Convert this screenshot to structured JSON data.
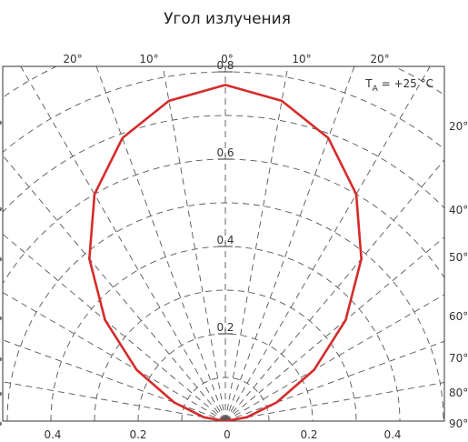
{
  "chart_data": {
    "type": "polar",
    "title": "Угол излучения",
    "annotation": {
      "prefix": "T",
      "subscript": "A",
      "suffix": " = +25 °C"
    },
    "top_tick_labels": [
      "20°",
      "10°",
      "0°",
      "10°",
      "20°"
    ],
    "right_tick_labels": [
      "20°",
      "40°",
      "50°",
      "60°",
      "70°",
      "80°",
      "90°"
    ],
    "bottom_tick_labels": [
      "0.4",
      "0.2",
      "0",
      "0.2",
      "0.4"
    ],
    "radial_labels": [
      "0.2",
      "0.4",
      "0.6",
      "0.8"
    ],
    "grid_radii": [
      0.1,
      0.2,
      0.3,
      0.4,
      0.5,
      0.6,
      0.7,
      0.8,
      0.9
    ],
    "grid_angles_deg": [
      -90,
      -80,
      -70,
      -60,
      -50,
      -40,
      -30,
      -20,
      -10,
      0,
      10,
      20,
      30,
      40,
      50,
      60,
      70,
      80,
      90
    ],
    "series": [
      {
        "color": "#d62b2b",
        "angles_deg": [
          -90,
          -80,
          -70,
          -60,
          -50,
          -40,
          -30,
          -20,
          -10,
          0,
          10,
          20,
          30,
          40,
          50,
          60,
          70,
          80,
          90
        ],
        "values": [
          0.0,
          0.05,
          0.125,
          0.235,
          0.36,
          0.485,
          0.6,
          0.69,
          0.745,
          0.77,
          0.745,
          0.69,
          0.6,
          0.485,
          0.36,
          0.235,
          0.125,
          0.05,
          0.0
        ]
      }
    ]
  }
}
